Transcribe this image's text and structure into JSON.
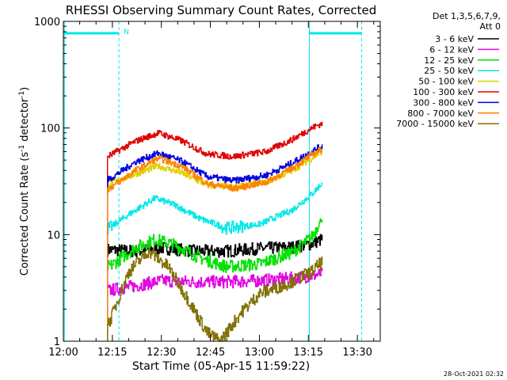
{
  "chart_data": {
    "type": "line",
    "title": "RHESSI Observing Summary Count Rates, Corrected",
    "xlabel": "Start Time (05-Apr-15 11:59:22)",
    "ylabel_main": "Corrected Count Rate (s",
    "ylabel_sup1": "-1",
    "ylabel_mid": " detector",
    "ylabel_sup2": "-1",
    "ylabel_end": ")",
    "y_scale": "log",
    "ylim": [
      1,
      1000
    ],
    "xlim_minutes": [
      0,
      97
    ],
    "x_ticks": [
      {
        "min": 0,
        "label": "12:00"
      },
      {
        "min": 15,
        "label": "12:15"
      },
      {
        "min": 30,
        "label": "12:30"
      },
      {
        "min": 45,
        "label": "12:45"
      },
      {
        "min": 60,
        "label": "13:00"
      },
      {
        "min": 75,
        "label": "13:15"
      },
      {
        "min": 90,
        "label": "13:30"
      }
    ],
    "y_ticks": [
      {
        "value": 1,
        "label": "1"
      },
      {
        "value": 10,
        "label": "10"
      },
      {
        "value": 100,
        "label": "100"
      },
      {
        "value": 1000,
        "label": "1000"
      }
    ],
    "legend_header": [
      "Det 1,3,5,6,7,9,",
      "Att 0"
    ],
    "legend_position": "top-right",
    "footer_timestamp": "28-Oct-2021 02:32",
    "night_marker_label": "N",
    "night_bands": [
      [
        0.3,
        17
      ],
      [
        75.3,
        91.3
      ]
    ],
    "dashed_markers": [
      17,
      91.3
    ],
    "solid_markers": [
      0.3,
      75.3
    ],
    "data_start_min": 13.5,
    "data_end_min": 79.3,
    "series": [
      {
        "name": "3 - 6 keV",
        "color": "#000000",
        "values": [
          [
            14,
            7.2
          ],
          [
            22,
            7.0
          ],
          [
            30,
            7.5
          ],
          [
            40,
            7.0
          ],
          [
            50,
            7.0
          ],
          [
            60,
            7.4
          ],
          [
            70,
            7.6
          ],
          [
            76,
            8.2
          ],
          [
            79,
            9.0
          ]
        ]
      },
      {
        "name": "6 - 12 keV",
        "color": "#e000e0",
        "values": [
          [
            14,
            3.0
          ],
          [
            22,
            3.3
          ],
          [
            30,
            3.7
          ],
          [
            40,
            3.6
          ],
          [
            50,
            3.6
          ],
          [
            60,
            3.7
          ],
          [
            70,
            3.9
          ],
          [
            76,
            4.1
          ],
          [
            79,
            4.3
          ]
        ]
      },
      {
        "name": "12 - 25 keV",
        "color": "#00e000",
        "values": [
          [
            14,
            5.0
          ],
          [
            22,
            7.5
          ],
          [
            28,
            9.0
          ],
          [
            34,
            8.0
          ],
          [
            42,
            6.0
          ],
          [
            50,
            5.0
          ],
          [
            60,
            5.3
          ],
          [
            70,
            6.8
          ],
          [
            76,
            9.5
          ],
          [
            79,
            14.0
          ]
        ]
      },
      {
        "name": "25 - 50 keV",
        "color": "#00e8e8",
        "values": [
          [
            14,
            11.5
          ],
          [
            20,
            15.5
          ],
          [
            28,
            22.0
          ],
          [
            34,
            19.0
          ],
          [
            42,
            14.0
          ],
          [
            50,
            11.5
          ],
          [
            60,
            12.5
          ],
          [
            70,
            17.0
          ],
          [
            76,
            24.0
          ],
          [
            79,
            30.0
          ]
        ]
      },
      {
        "name": "50 - 100 keV",
        "color": "#e0d000",
        "values": [
          [
            14,
            30.0
          ],
          [
            22,
            37.0
          ],
          [
            29,
            44.0
          ],
          [
            36,
            38.0
          ],
          [
            44,
            29.0
          ],
          [
            52,
            28.0
          ],
          [
            62,
            31.0
          ],
          [
            70,
            40.0
          ],
          [
            76,
            52.0
          ],
          [
            79,
            60.0
          ]
        ]
      },
      {
        "name": "100 - 300 keV",
        "color": "#e00000",
        "values": [
          [
            14,
            55.0
          ],
          [
            22,
            75.0
          ],
          [
            29,
            90.0
          ],
          [
            36,
            76.0
          ],
          [
            44,
            57.0
          ],
          [
            52,
            54.0
          ],
          [
            62,
            60.0
          ],
          [
            70,
            78.0
          ],
          [
            76,
            100.0
          ],
          [
            79,
            110.0
          ]
        ]
      },
      {
        "name": "300 - 800 keV",
        "color": "#0000e0",
        "values": [
          [
            14,
            33.0
          ],
          [
            22,
            48.0
          ],
          [
            29,
            58.0
          ],
          [
            36,
            49.0
          ],
          [
            44,
            35.0
          ],
          [
            52,
            32.0
          ],
          [
            62,
            36.0
          ],
          [
            70,
            47.0
          ],
          [
            76,
            60.0
          ],
          [
            79,
            68.0
          ]
        ]
      },
      {
        "name": "800 - 7000 keV",
        "color": "#ff8000",
        "values": [
          [
            14,
            27.0
          ],
          [
            22,
            40.0
          ],
          [
            29,
            52.0
          ],
          [
            36,
            44.0
          ],
          [
            44,
            30.0
          ],
          [
            52,
            27.0
          ],
          [
            62,
            31.0
          ],
          [
            70,
            42.0
          ],
          [
            76,
            56.0
          ],
          [
            79,
            63.0
          ]
        ]
      },
      {
        "name": "7000 - 15000 keV",
        "color": "#807000",
        "values": [
          [
            14,
            1.5
          ],
          [
            20,
            4.5
          ],
          [
            26,
            7.0
          ],
          [
            32,
            5.0
          ],
          [
            38,
            2.5
          ],
          [
            44,
            1.2
          ],
          [
            48,
            1.0
          ],
          [
            54,
            1.8
          ],
          [
            60,
            2.8
          ],
          [
            68,
            3.4
          ],
          [
            76,
            4.5
          ],
          [
            79,
            5.5
          ]
        ]
      }
    ]
  }
}
